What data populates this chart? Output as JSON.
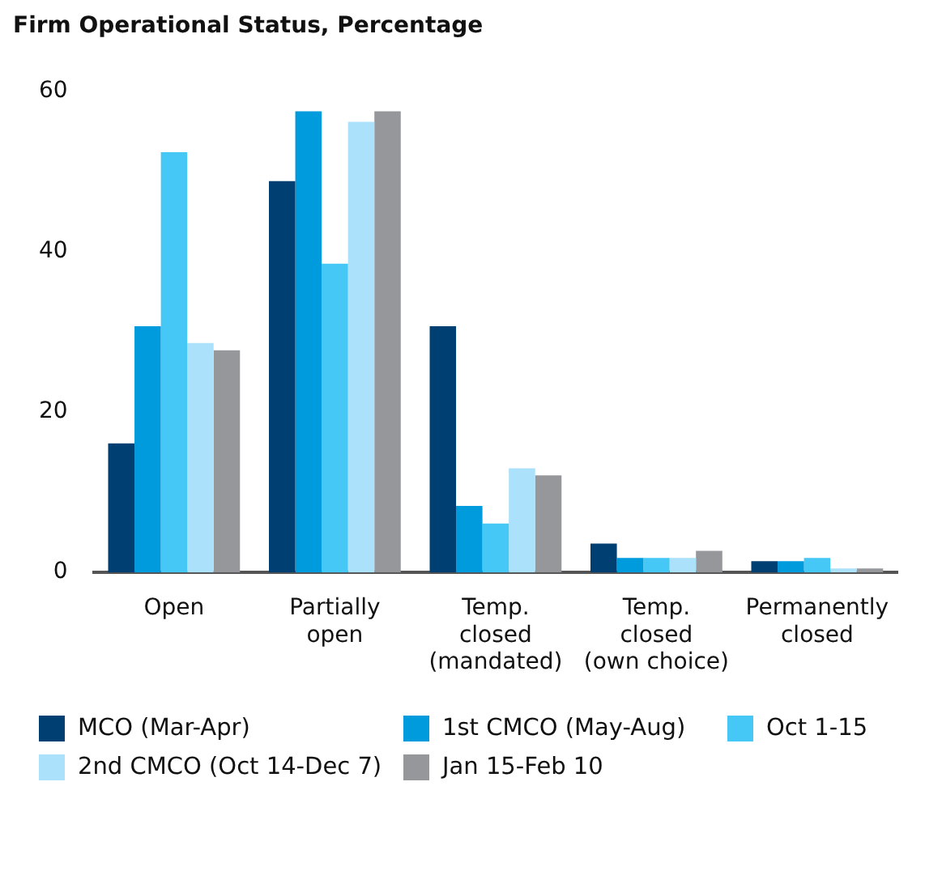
{
  "chart_data": {
    "type": "bar",
    "title": "Firm Operational Status, Percentage",
    "categories": [
      "Open",
      "Partially open",
      "Temp. closed (mandated)",
      "Temp. closed (own choice)",
      "Permanently closed"
    ],
    "series": [
      {
        "name": "MCO (Mar-Apr)",
        "color": "#003f72",
        "values": [
          16.1,
          48.8,
          30.7,
          3.6,
          1.4
        ]
      },
      {
        "name": "1st CMCO (May-Aug)",
        "color": "#009bdd",
        "values": [
          30.7,
          57.5,
          8.3,
          1.8,
          1.4
        ]
      },
      {
        "name": "Oct 1-15",
        "color": "#45c8f5",
        "values": [
          52.4,
          38.5,
          6.1,
          1.8,
          1.8
        ]
      },
      {
        "name": "2nd CMCO (Oct 14-Dec 7)",
        "color": "#abe1fa",
        "values": [
          28.6,
          56.2,
          13.0,
          1.8,
          0.5
        ]
      },
      {
        "name": "Jan 15-Feb 10",
        "color": "#95979b",
        "values": [
          27.7,
          57.5,
          12.1,
          2.7,
          0.5
        ]
      }
    ],
    "ylim": [
      0,
      60
    ],
    "yticks": [
      0,
      20,
      40,
      60
    ],
    "grid": false,
    "legend": "bottom"
  }
}
